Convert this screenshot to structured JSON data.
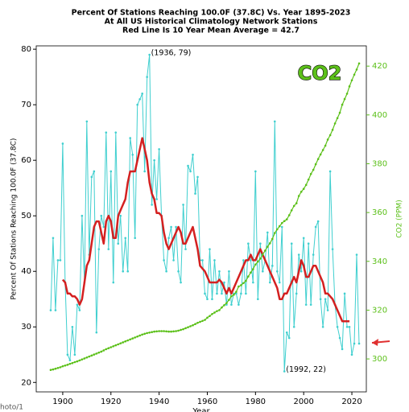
{
  "chart_data": {
    "type": "line",
    "title_lines": [
      "Percent Of Stations Reaching 100.0F (37.8C) Vs. Year 1895-2023",
      "At All US Historical Climatology Network Stations",
      "Red Line Is 10 Year Mean  Average = 42.7"
    ],
    "x_label": "Year",
    "y_label": "Percent Of Stations Reaching 100.0F (37.8C)",
    "y2_label": "CO2 (PPM)",
    "co2_badge": "CO2",
    "watermark": "hoto/1",
    "xlim": [
      1889,
      2026
    ],
    "xticks": [
      1900,
      1920,
      1940,
      1960,
      1980,
      2000,
      2020
    ],
    "ylim": [
      18.3,
      80.6
    ],
    "yticks": [
      20,
      30,
      40,
      50,
      60,
      70,
      80
    ],
    "y2lim": [
      286.5,
      428.3
    ],
    "y2ticks": [
      300,
      320,
      340,
      360,
      380,
      400,
      420
    ],
    "x": [
      1895,
      1896,
      1897,
      1898,
      1899,
      1900,
      1901,
      1902,
      1903,
      1904,
      1905,
      1906,
      1907,
      1908,
      1909,
      1910,
      1911,
      1912,
      1913,
      1914,
      1915,
      1916,
      1917,
      1918,
      1919,
      1920,
      1921,
      1922,
      1923,
      1924,
      1925,
      1926,
      1927,
      1928,
      1929,
      1930,
      1931,
      1932,
      1933,
      1934,
      1935,
      1936,
      1937,
      1938,
      1939,
      1940,
      1941,
      1942,
      1943,
      1944,
      1945,
      1946,
      1947,
      1948,
      1949,
      1950,
      1951,
      1952,
      1953,
      1954,
      1955,
      1956,
      1957,
      1958,
      1959,
      1960,
      1961,
      1962,
      1963,
      1964,
      1965,
      1966,
      1967,
      1968,
      1969,
      1970,
      1971,
      1972,
      1973,
      1974,
      1975,
      1976,
      1977,
      1978,
      1979,
      1980,
      1981,
      1982,
      1983,
      1984,
      1985,
      1986,
      1987,
      1988,
      1989,
      1990,
      1991,
      1992,
      1993,
      1994,
      1995,
      1996,
      1997,
      1998,
      1999,
      2000,
      2001,
      2002,
      2003,
      2004,
      2005,
      2006,
      2007,
      2008,
      2009,
      2010,
      2011,
      2012,
      2013,
      2014,
      2015,
      2016,
      2017,
      2018,
      2019,
      2020,
      2021,
      2022,
      2023
    ],
    "series": [
      {
        "name": "Percent of stations",
        "color": "#3fcfcf",
        "width": 1,
        "markers": true,
        "values": [
          33,
          46,
          33,
          42,
          42,
          63,
          38,
          25,
          24,
          30,
          25,
          34,
          33,
          50,
          38,
          67,
          43,
          57,
          58,
          29,
          44,
          50,
          48,
          65,
          44,
          58,
          38,
          65,
          45,
          50,
          40,
          46,
          40,
          64,
          61,
          46,
          70,
          71,
          72,
          58,
          75,
          79,
          52,
          60,
          53,
          62,
          50,
          42,
          40,
          46,
          48,
          42,
          48,
          40,
          38,
          52,
          44,
          59,
          58,
          61,
          54,
          57,
          42,
          42,
          36,
          35,
          44,
          35,
          42,
          36,
          40,
          36,
          38,
          34,
          40,
          34,
          36,
          36,
          34,
          36,
          42,
          36,
          45,
          42,
          38,
          58,
          35,
          45,
          40,
          42,
          47,
          38,
          41,
          67,
          40,
          38,
          48,
          22,
          29,
          28,
          45,
          30,
          36,
          43,
          40,
          46,
          34,
          45,
          34,
          43,
          48,
          49,
          35,
          30,
          35,
          33,
          58,
          44,
          34,
          30,
          28,
          26,
          36,
          30,
          30,
          25,
          27,
          43,
          27
        ]
      },
      {
        "name": "10 year mean",
        "color": "#d42020",
        "width": 2.5,
        "markers": false,
        "values": [
          null,
          null,
          null,
          null,
          null,
          38.5,
          38,
          36,
          36,
          35.5,
          35.5,
          35,
          34,
          35,
          38,
          41,
          42,
          45,
          48,
          49,
          49,
          47,
          45,
          49,
          50,
          49,
          46,
          46,
          50,
          51,
          52,
          53,
          56,
          58,
          58,
          58,
          60,
          62,
          64,
          62,
          60,
          56,
          54,
          53,
          50.5,
          50.5,
          50,
          47,
          45,
          44,
          45,
          46,
          47,
          48,
          47,
          45,
          45,
          46,
          47,
          48,
          46,
          44,
          41,
          40.5,
          40,
          39,
          38,
          38,
          38,
          38,
          38.5,
          38,
          37,
          36,
          37,
          36,
          37,
          38,
          39,
          40,
          41,
          42,
          42,
          43,
          42,
          42,
          43,
          44,
          43,
          42,
          41,
          40,
          39,
          38,
          37,
          35,
          35,
          36,
          36,
          37,
          38,
          39,
          38,
          40,
          42,
          41,
          39,
          39,
          40,
          41,
          41,
          40,
          39,
          38,
          36,
          36,
          35.5,
          35,
          34,
          33,
          32,
          31,
          31,
          31,
          31,
          null,
          null,
          null,
          null
        ]
      },
      {
        "name": "CO2",
        "color": "#5cc01a",
        "width": 1.2,
        "markers": true,
        "axis": "y2",
        "values": [
          295.5,
          295.7,
          296,
          296.3,
          296.6,
          297,
          297.3,
          297.6,
          298,
          298.3,
          298.7,
          299,
          299.4,
          299.8,
          300.2,
          300.6,
          301,
          301.4,
          301.8,
          302.2,
          302.6,
          303,
          303.5,
          304,
          304.4,
          304.8,
          305.2,
          305.6,
          306,
          306.4,
          306.8,
          307.2,
          307.6,
          308,
          308.4,
          308.8,
          309.2,
          309.6,
          310,
          310.3,
          310.6,
          310.8,
          311,
          311.2,
          311.3,
          311.4,
          311.4,
          311.4,
          311.3,
          311.2,
          311.2,
          311.3,
          311.4,
          311.6,
          311.9,
          312.2,
          312.6,
          313,
          313.4,
          313.8,
          314.3,
          314.8,
          315.2,
          315.6,
          316,
          316.9,
          317.6,
          318.4,
          319,
          319.6,
          320,
          321.1,
          322,
          322.9,
          324.2,
          325.7,
          326.3,
          327.5,
          329.7,
          330.2,
          331.1,
          332,
          333.8,
          335.4,
          336.8,
          338.7,
          339.9,
          341.1,
          342.8,
          344.4,
          346,
          347.4,
          349.2,
          351.6,
          353.1,
          354.4,
          355.7,
          356.5,
          357.2,
          358.9,
          360.9,
          362.7,
          363.8,
          366.8,
          368.5,
          369.7,
          371.3,
          373.5,
          375.8,
          377.5,
          379.8,
          381.9,
          383.8,
          385.6,
          387.4,
          389.9,
          391.7,
          393.9,
          396.5,
          398.7,
          400.9,
          404.2,
          406.5,
          408.7,
          411.7,
          414.2,
          416.5,
          418.6,
          421.1
        ]
      }
    ],
    "annotations": [
      {
        "text": "(1936, 79)",
        "x": 1936,
        "y": 79
      },
      {
        "text": "(1992, 22)",
        "x": 1992,
        "y": 22
      }
    ]
  }
}
